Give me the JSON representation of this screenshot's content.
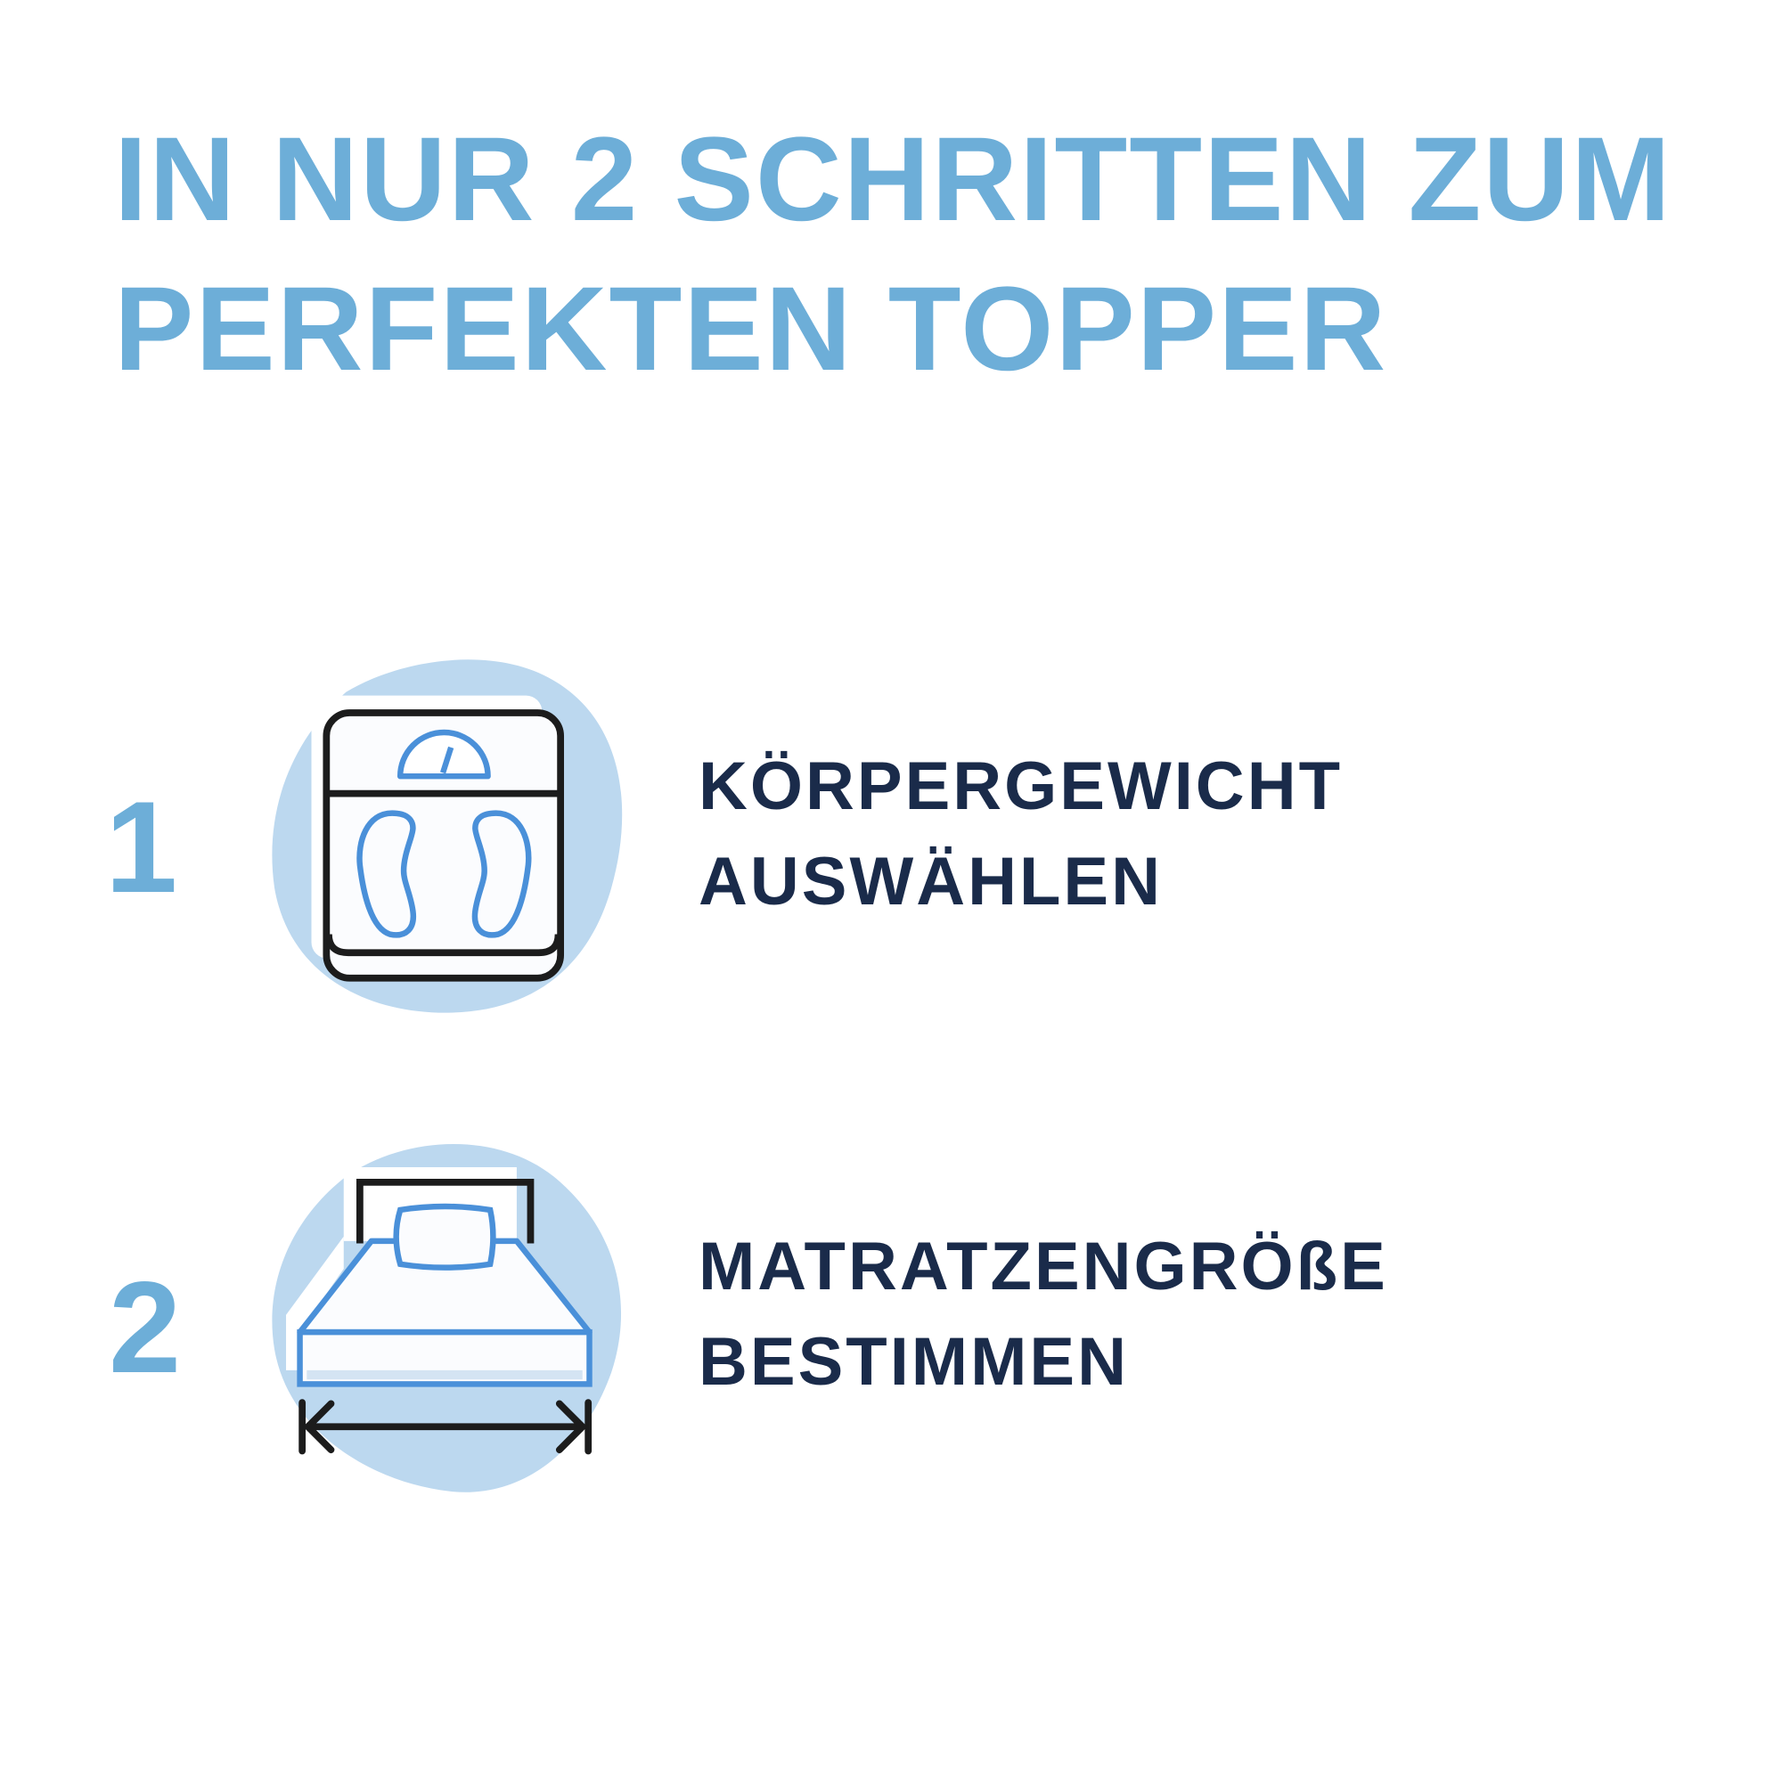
{
  "title": {
    "line1": "IN NUR 2 SCHRITTEN ZUM",
    "line2": "PERFEKTEN TOPPER"
  },
  "steps": [
    {
      "number": "1",
      "line1": "KÖRPERGEWICHT",
      "line2": "AUSWÄHLEN",
      "icon": "bathroom-scale-icon"
    },
    {
      "number": "2",
      "line1": "MATRATZENGRÖßE",
      "line2": "BESTIMMEN",
      "icon": "bed-width-icon"
    }
  ],
  "colors": {
    "title": "#6daed8",
    "text": "#1a2b4a",
    "blob": "#bcd8ef",
    "icon_accent": "#4a90d9",
    "icon_outline": "#1c1c1c"
  }
}
